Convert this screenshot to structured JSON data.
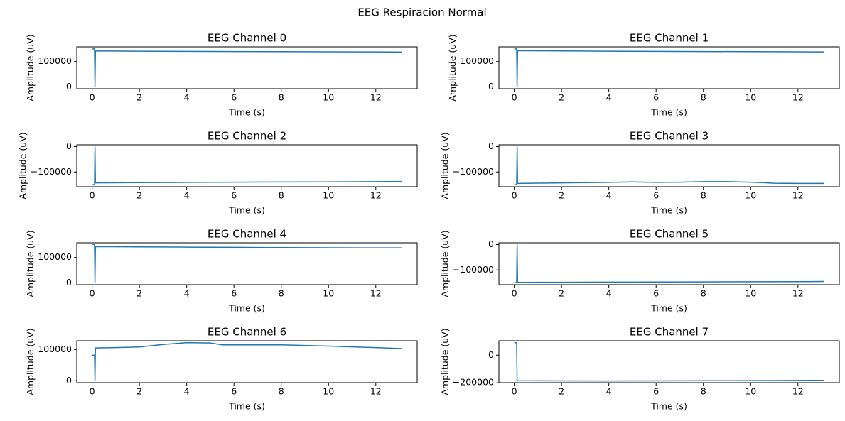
{
  "title": "EEG Respiracion Normal",
  "chart_data": [
    {
      "type": "line",
      "title": "EEG Channel 0",
      "xlabel": "Time (s)",
      "ylabel": "Amplitude (uV)",
      "color": "#1f77b4",
      "x": [
        0,
        0.1,
        0.12,
        0.14,
        2,
        4,
        6,
        8,
        10,
        12,
        13.1
      ],
      "values": [
        150000,
        150000,
        0,
        142000,
        141000,
        140000,
        139500,
        139000,
        138500,
        138000,
        137500
      ],
      "xlim": [
        -0.65,
        13.75
      ],
      "ylim": [
        -7000,
        158000
      ],
      "xticks": [
        0,
        2,
        4,
        6,
        8,
        10,
        12
      ],
      "yticks": [
        0,
        100000
      ]
    },
    {
      "type": "line",
      "title": "EEG Channel 1",
      "xlabel": "Time (s)",
      "ylabel": "Amplitude (uV)",
      "color": "#1f77b4",
      "x": [
        0,
        0.1,
        0.12,
        0.14,
        2,
        4,
        6,
        8,
        10,
        12,
        13.1
      ],
      "values": [
        150000,
        150000,
        0,
        143000,
        142000,
        141000,
        140000,
        139500,
        139000,
        138500,
        138000
      ],
      "xlim": [
        -0.65,
        13.75
      ],
      "ylim": [
        -7000,
        158000
      ],
      "xticks": [
        0,
        2,
        4,
        6,
        8,
        10,
        12
      ],
      "yticks": [
        0,
        100000
      ]
    },
    {
      "type": "line",
      "title": "EEG Channel 2",
      "xlabel": "Time (s)",
      "ylabel": "Amplitude (uV)",
      "color": "#1f77b4",
      "x": [
        0,
        0.1,
        0.12,
        0.14,
        2,
        4,
        6,
        8,
        10,
        12,
        13.1
      ],
      "values": [
        -150000,
        -150000,
        0,
        -143000,
        -142000,
        -141000,
        -140000,
        -139500,
        -139000,
        -138000,
        -137500
      ],
      "xlim": [
        -0.65,
        13.75
      ],
      "ylim": [
        -158000,
        7000
      ],
      "xticks": [
        0,
        2,
        4,
        6,
        8,
        10,
        12
      ],
      "yticks": [
        {
          "value": -100000,
          "label": "−100000"
        },
        0
      ]
    },
    {
      "type": "line",
      "title": "EEG Channel 3",
      "xlabel": "Time (s)",
      "ylabel": "Amplitude (uV)",
      "color": "#1f77b4",
      "x": [
        0,
        0.1,
        0.12,
        0.14,
        1,
        2,
        3,
        4,
        5,
        6,
        7,
        8,
        9,
        10,
        10.5,
        11,
        12,
        13.1
      ],
      "values": [
        -150000,
        -150000,
        0,
        -145000,
        -144000,
        -143000,
        -142000,
        -141000,
        -139000,
        -141000,
        -140000,
        -138000,
        -138000,
        -140000,
        -142000,
        -144500,
        -145000,
        -145000
      ],
      "xlim": [
        -0.65,
        13.75
      ],
      "ylim": [
        -158000,
        7000
      ],
      "xticks": [
        0,
        2,
        4,
        6,
        8,
        10,
        12
      ],
      "yticks": [
        {
          "value": -100000,
          "label": "−100000"
        },
        0
      ]
    },
    {
      "type": "line",
      "title": "EEG Channel 4",
      "xlabel": "Time (s)",
      "ylabel": "Amplitude (uV)",
      "color": "#1f77b4",
      "x": [
        0,
        0.1,
        0.12,
        0.14,
        2,
        4,
        6,
        8,
        10,
        12,
        13.1
      ],
      "values": [
        152000,
        152000,
        0,
        143000,
        142000,
        141000,
        140000,
        139000,
        138500,
        138000,
        138000
      ],
      "xlim": [
        -0.65,
        13.75
      ],
      "ylim": [
        -7000,
        158000
      ],
      "xticks": [
        0,
        2,
        4,
        6,
        8,
        10,
        12
      ],
      "yticks": [
        0,
        100000
      ]
    },
    {
      "type": "line",
      "title": "EEG Channel 5",
      "xlabel": "Time (s)",
      "ylabel": "Amplitude (uV)",
      "color": "#1f77b4",
      "x": [
        0,
        0.1,
        0.12,
        0.14,
        2,
        4,
        6,
        8,
        10,
        12,
        13.1
      ],
      "values": [
        -150000,
        -150000,
        0,
        -149000,
        -148500,
        -148000,
        -147500,
        -147000,
        -146500,
        -146000,
        -145500
      ],
      "xlim": [
        -0.65,
        13.75
      ],
      "ylim": [
        -158000,
        7000
      ],
      "xticks": [
        0,
        2,
        4,
        6,
        8,
        10,
        12
      ],
      "yticks": [
        {
          "value": -100000,
          "label": "−100000"
        },
        0
      ]
    },
    {
      "type": "line",
      "title": "EEG Channel 6",
      "xlabel": "Time (s)",
      "ylabel": "Amplitude (uV)",
      "color": "#1f77b4",
      "x": [
        0,
        0.1,
        0.12,
        0.14,
        1,
        2,
        3,
        4,
        5,
        5.5,
        6,
        8,
        10,
        12,
        13.1
      ],
      "values": [
        82000,
        82000,
        0,
        105000,
        106000,
        108000,
        116000,
        122000,
        121000,
        115000,
        115000,
        115000,
        111000,
        106000,
        103000
      ],
      "xlim": [
        -0.65,
        13.75
      ],
      "ylim": [
        -6000,
        128000
      ],
      "xticks": [
        0,
        2,
        4,
        6,
        8,
        10,
        12
      ],
      "yticks": [
        0,
        100000
      ]
    },
    {
      "type": "line",
      "title": "EEG Channel 7",
      "xlabel": "Time (s)",
      "ylabel": "Amplitude (uV)",
      "color": "#1f77b4",
      "x": [
        0,
        0.1,
        0.12,
        0.14,
        2,
        4,
        6,
        8,
        10,
        12,
        13.1
      ],
      "values": [
        90000,
        90000,
        -183000,
        -185000,
        -186000,
        -186500,
        -186000,
        -185000,
        -184000,
        -183000,
        -182000
      ],
      "xlim": [
        -0.65,
        13.75
      ],
      "ylim": [
        -199000,
        104000
      ],
      "xticks": [
        0,
        2,
        4,
        6,
        8,
        10,
        12
      ],
      "yticks": [
        {
          "value": -200000,
          "label": "−200000"
        },
        0
      ]
    }
  ]
}
